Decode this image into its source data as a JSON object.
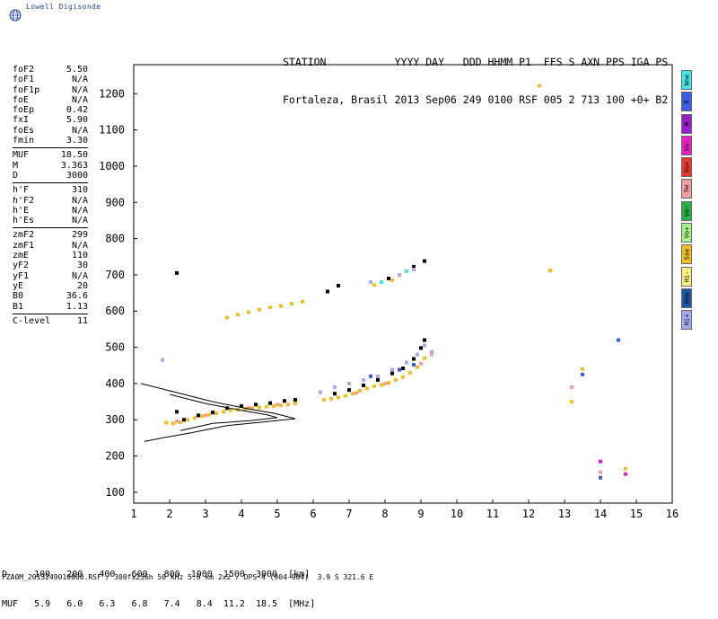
{
  "logo": {
    "text": "Lowell Digisonde"
  },
  "header": {
    "line1": "STATION           YYYY DAY   DDD HHMM P1  FFS S AXN PPS IGA PS",
    "line2": "Fortaleza, Brasil 2013 Sep06 249 0100 RSF 005 2 713 100 +0+ B2"
  },
  "params": {
    "group1": [
      {
        "label": "foF2",
        "value": "5.50"
      },
      {
        "label": "foF1",
        "value": "N/A"
      },
      {
        "label": "foF1p",
        "value": "N/A"
      },
      {
        "label": "foE",
        "value": "N/A"
      },
      {
        "label": "foEp",
        "value": "0.42"
      },
      {
        "label": "fxI",
        "value": "5.90"
      },
      {
        "label": "foEs",
        "value": "N/A"
      },
      {
        "label": "fmin",
        "value": "3.30"
      }
    ],
    "group2": [
      {
        "label": "MUF",
        "value": "18.50"
      },
      {
        "label": "M",
        "value": "3.363"
      },
      {
        "label": "D",
        "value": "3000"
      }
    ],
    "group3": [
      {
        "label": "h'F",
        "value": "310"
      },
      {
        "label": "h'F2",
        "value": "N/A"
      },
      {
        "label": "h'E",
        "value": "N/A"
      },
      {
        "label": "h'Es",
        "value": "N/A"
      }
    ],
    "group4": [
      {
        "label": "zmF2",
        "value": "299"
      },
      {
        "label": "zmF1",
        "value": "N/A"
      },
      {
        "label": "zmE",
        "value": "110"
      },
      {
        "label": "yF2",
        "value": "30"
      },
      {
        "label": "yF1",
        "value": "N/A"
      },
      {
        "label": "yE",
        "value": "20"
      },
      {
        "label": "B0",
        "value": "36.6"
      },
      {
        "label": "B1",
        "value": "1.13"
      }
    ],
    "group5": [
      {
        "label": "C-level",
        "value": "11"
      }
    ]
  },
  "legend": [
    {
      "label": "Nne",
      "color": "#44e8e8"
    },
    {
      "label": "E",
      "color": "#3a5de8"
    },
    {
      "label": "W",
      "color": "#9a1fc8"
    },
    {
      "label": "Vo-",
      "color": "#e81fc8"
    },
    {
      "label": "Vo+",
      "color": "#e83a2a"
    },
    {
      "label": "Sw",
      "color": "#f0a0a0"
    },
    {
      "label": "Vo-",
      "color": "#2ab04a"
    },
    {
      "label": "Vo+",
      "color": "#a8f08a"
    },
    {
      "label": "Sse",
      "color": "#f0c020"
    },
    {
      "label": "Hi-",
      "color": "#f8f080"
    },
    {
      "label": "Nnw",
      "color": "#1a58a8"
    },
    {
      "label": "Hi+",
      "color": "#a8a8f0"
    }
  ],
  "dtable": {
    "row1": "D     100   200   400   600   800  1000  1500  3000  [km]",
    "row2": "MUF   5.9   6.0   6.3   6.8   7.4   8.4  11.2  18.5  [MHz]"
  },
  "footer": {
    "text": "FZA0M_2013249010000.RSF / 300fx256h 50 kHz 5.0 km 2x2 / DPS-4 (904-904)  3.9 S 321.6 E"
  },
  "chart_data": {
    "type": "scatter",
    "x_ticks": [
      1,
      2,
      3,
      4,
      5,
      6,
      7,
      8,
      9,
      10,
      11,
      12,
      13,
      14,
      15,
      16
    ],
    "y_ticks": [
      100,
      200,
      300,
      400,
      500,
      600,
      700,
      800,
      900,
      1000,
      1100,
      1200
    ],
    "xlim": [
      1,
      16
    ],
    "ylim": [
      70,
      1280
    ],
    "series": [
      {
        "color": "#f0c020",
        "points": [
          [
            1.9,
            292
          ],
          [
            2.1,
            290
          ],
          [
            2.3,
            293
          ],
          [
            2.5,
            300
          ],
          [
            2.7,
            305
          ],
          [
            2.9,
            310
          ],
          [
            3.1,
            314
          ],
          [
            3.3,
            318
          ],
          [
            3.5,
            322
          ],
          [
            3.7,
            326
          ],
          [
            3.9,
            328
          ],
          [
            4.1,
            330
          ],
          [
            4.3,
            332
          ],
          [
            4.5,
            334
          ],
          [
            4.7,
            336
          ],
          [
            4.9,
            338
          ],
          [
            5.1,
            340
          ],
          [
            5.3,
            342
          ],
          [
            5.5,
            345
          ],
          [
            6.3,
            355
          ],
          [
            6.5,
            358
          ],
          [
            6.7,
            362
          ],
          [
            6.9,
            366
          ],
          [
            7.1,
            372
          ],
          [
            7.3,
            380
          ],
          [
            7.5,
            386
          ],
          [
            7.7,
            392
          ],
          [
            7.9,
            396
          ],
          [
            8.1,
            402
          ],
          [
            8.3,
            410
          ],
          [
            8.5,
            418
          ],
          [
            8.7,
            430
          ],
          [
            8.9,
            445
          ],
          [
            9.1,
            470
          ],
          [
            3.6,
            582
          ],
          [
            3.9,
            590
          ],
          [
            4.2,
            597
          ],
          [
            4.5,
            604
          ],
          [
            4.8,
            610
          ],
          [
            5.1,
            614
          ],
          [
            5.4,
            620
          ],
          [
            5.7,
            626
          ],
          [
            7.7,
            672
          ],
          [
            8.2,
            685
          ],
          [
            12.3,
            1222
          ],
          [
            12.6,
            712
          ],
          [
            13.2,
            350
          ],
          [
            13.5,
            440
          ],
          [
            14.7,
            165
          ]
        ]
      },
      {
        "color": "#000000",
        "points": [
          [
            2.4,
            300
          ],
          [
            2.8,
            312
          ],
          [
            3.2,
            320
          ],
          [
            3.6,
            332
          ],
          [
            4.0,
            338
          ],
          [
            4.4,
            342
          ],
          [
            4.8,
            346
          ],
          [
            5.2,
            352
          ],
          [
            5.5,
            355
          ],
          [
            6.6,
            372
          ],
          [
            7.0,
            382
          ],
          [
            7.4,
            395
          ],
          [
            7.8,
            410
          ],
          [
            8.2,
            428
          ],
          [
            8.5,
            442
          ],
          [
            8.8,
            468
          ],
          [
            9.0,
            498
          ],
          [
            9.1,
            520
          ],
          [
            2.2,
            322
          ],
          [
            2.2,
            705
          ],
          [
            6.4,
            654
          ],
          [
            6.7,
            670
          ],
          [
            8.1,
            690
          ],
          [
            8.8,
            722
          ],
          [
            9.1,
            738
          ]
        ]
      },
      {
        "color": "#a8a8f0",
        "points": [
          [
            6.2,
            376
          ],
          [
            6.6,
            390
          ],
          [
            7.0,
            400
          ],
          [
            7.4,
            410
          ],
          [
            7.8,
            420
          ],
          [
            8.2,
            438
          ],
          [
            8.6,
            458
          ],
          [
            8.9,
            480
          ],
          [
            9.1,
            505
          ],
          [
            9.3,
            488
          ],
          [
            1.8,
            465
          ],
          [
            7.6,
            680
          ],
          [
            8.4,
            700
          ],
          [
            8.8,
            715
          ]
        ]
      },
      {
        "color": "#f0a0a0",
        "points": [
          [
            2.2,
            296
          ],
          [
            3.0,
            312
          ],
          [
            4.2,
            333
          ],
          [
            5.0,
            342
          ],
          [
            7.2,
            374
          ],
          [
            8.0,
            400
          ],
          [
            9.0,
            455
          ],
          [
            9.3,
            480
          ],
          [
            13.2,
            390
          ],
          [
            14.0,
            155
          ]
        ]
      },
      {
        "color": "#3a5de8",
        "points": [
          [
            7.6,
            420
          ],
          [
            8.4,
            438
          ],
          [
            8.8,
            452
          ],
          [
            13.5,
            425
          ],
          [
            14.5,
            520
          ],
          [
            14.0,
            140
          ]
        ]
      },
      {
        "color": "#e81fc8",
        "points": [
          [
            14.0,
            185
          ],
          [
            14.7,
            150
          ]
        ]
      },
      {
        "color": "#44e8e8",
        "points": [
          [
            7.9,
            680
          ],
          [
            8.6,
            710
          ]
        ]
      }
    ],
    "profile_curve": [
      [
        1.2,
        400
      ],
      [
        2.2,
        375
      ],
      [
        3.2,
        350
      ],
      [
        4.2,
        330
      ],
      [
        4.9,
        318
      ],
      [
        5.5,
        303
      ],
      [
        4.6,
        294
      ],
      [
        3.6,
        284
      ],
      [
        2.6,
        264
      ],
      [
        1.8,
        250
      ],
      [
        1.3,
        240
      ]
    ],
    "profile_curve2": [
      [
        2.0,
        370
      ],
      [
        3.0,
        345
      ],
      [
        4.0,
        326
      ],
      [
        4.7,
        314
      ],
      [
        5.0,
        306
      ],
      [
        4.3,
        298
      ],
      [
        3.2,
        290
      ],
      [
        2.3,
        270
      ]
    ]
  }
}
